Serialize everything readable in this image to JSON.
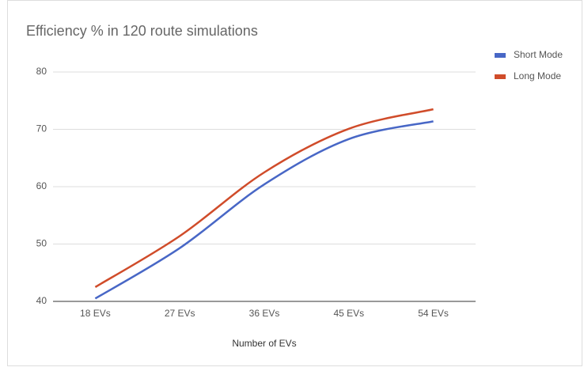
{
  "chart_data": {
    "type": "line",
    "title": "Efficiency % in 120 route simulations",
    "x_label": "Number of EVs",
    "categories": [
      "18 EVs",
      "27 EVs",
      "36 EVs",
      "45 EVs",
      "54 EVs"
    ],
    "series": [
      {
        "name": "Short Mode",
        "color": "#4867c6",
        "values": [
          40.5,
          49.3,
          60.4,
          68.3,
          71.4
        ]
      },
      {
        "name": "Long Mode",
        "color": "#d04c2a",
        "values": [
          42.5,
          51.4,
          62.5,
          70.1,
          73.5
        ]
      }
    ],
    "ylim": [
      40,
      80
    ],
    "yticks": [
      40,
      50,
      60,
      70,
      80
    ],
    "grid": true,
    "legend": "right",
    "smooth": true
  }
}
